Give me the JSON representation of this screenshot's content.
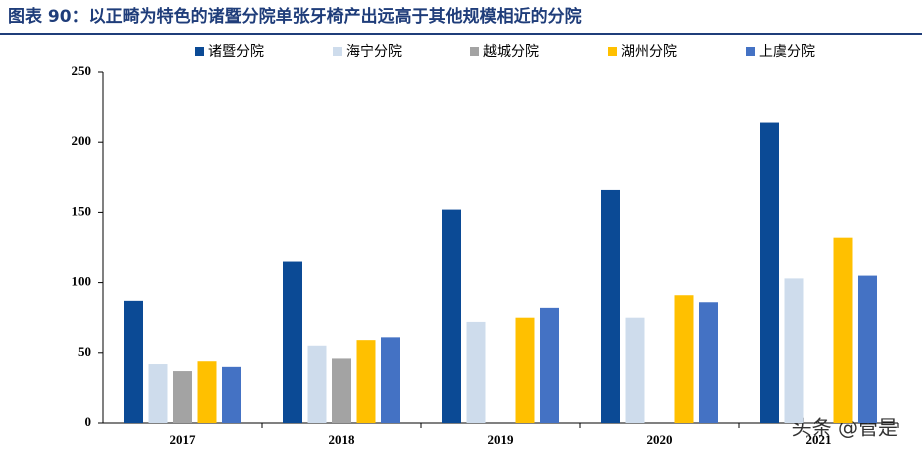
{
  "chart_data": {
    "type": "bar",
    "title": "图表 90：以正畸为特色的诸暨分院单张牙椅产出远高于其他规模相近的分院",
    "watermark": "头条 @管是",
    "categories": [
      "2017",
      "2018",
      "2019",
      "2020",
      "2021"
    ],
    "series": [
      {
        "name": "诸暨分院",
        "color": "#0b4a95",
        "values": [
          87,
          115,
          152,
          166,
          214
        ]
      },
      {
        "name": "海宁分院",
        "color": "#cedcec",
        "values": [
          42,
          55,
          72,
          75,
          103
        ]
      },
      {
        "name": "越城分院",
        "color": "#a3a3a3",
        "values": [
          37,
          46,
          null,
          null,
          null
        ]
      },
      {
        "name": "湖州分院",
        "color": "#ffc000",
        "values": [
          44,
          59,
          75,
          91,
          132
        ]
      },
      {
        "name": "上虞分院",
        "color": "#4472c4",
        "values": [
          40,
          61,
          82,
          86,
          105
        ]
      }
    ],
    "ylim": [
      0,
      250
    ],
    "yticks": [
      0,
      50,
      100,
      150,
      200,
      250
    ]
  }
}
